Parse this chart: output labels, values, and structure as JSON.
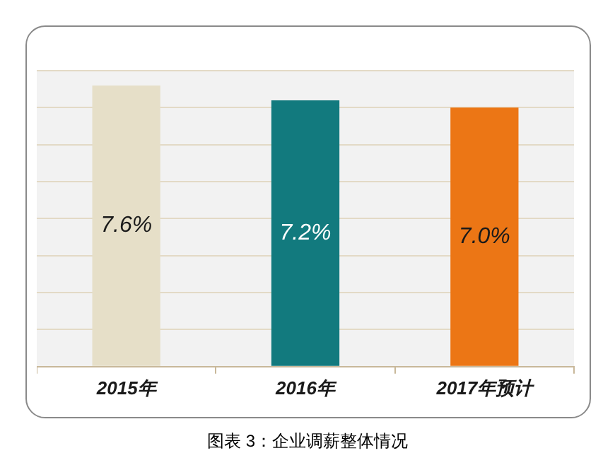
{
  "chart_data": {
    "type": "bar",
    "title": "图表 3：企业调薪整体情况",
    "categories": [
      "2015年",
      "2016年",
      "2017年预计"
    ],
    "values": [
      7.6,
      7.2,
      7.0
    ],
    "value_labels": [
      "7.6%",
      "7.2%",
      "7.0%"
    ],
    "colors": [
      "#e6dfc8",
      "#127a7e",
      "#ec7615"
    ],
    "grid": "y",
    "tick_labels": "x"
  }
}
